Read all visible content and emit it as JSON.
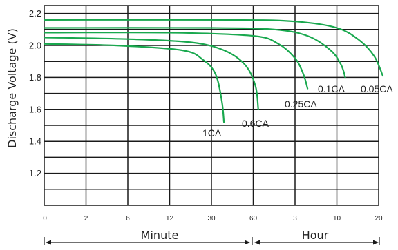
{
  "chart_data": {
    "type": "line",
    "ylabel": "Discharge Voltage (V)",
    "ylim": [
      1.0,
      2.25
    ],
    "y_ticks": [
      "1.2",
      "1.4",
      "1.6",
      "1.8",
      "2.0",
      "2.2"
    ],
    "x_tick_labels": [
      "0",
      "2",
      "6",
      "12",
      "30",
      "60",
      "3",
      "10",
      "20"
    ],
    "x_spans": [
      {
        "label": "Minute",
        "from": "0",
        "to": "60"
      },
      {
        "label": "Hour",
        "from": "60",
        "to": "20"
      }
    ],
    "grid": true,
    "series": [
      {
        "name": "1CA",
        "points": [
          [
            0,
            2.01
          ],
          [
            1.7,
            2.0
          ],
          [
            3.3,
            1.97
          ],
          [
            3.8,
            1.91
          ],
          [
            4.1,
            1.82
          ],
          [
            4.25,
            1.65
          ],
          [
            4.3,
            1.52
          ]
        ]
      },
      {
        "name": "0.6CA",
        "points": [
          [
            0,
            2.05
          ],
          [
            2.0,
            2.04
          ],
          [
            3.5,
            2.02
          ],
          [
            4.3,
            1.97
          ],
          [
            4.8,
            1.88
          ],
          [
            5.05,
            1.75
          ],
          [
            5.12,
            1.6
          ]
        ]
      },
      {
        "name": "0.25CA",
        "points": [
          [
            0,
            2.08
          ],
          [
            3.0,
            2.08
          ],
          [
            5.0,
            2.06
          ],
          [
            5.6,
            2.01
          ],
          [
            6.0,
            1.92
          ],
          [
            6.2,
            1.82
          ],
          [
            6.3,
            1.73
          ]
        ]
      },
      {
        "name": "0.1CA",
        "points": [
          [
            0,
            2.11
          ],
          [
            4.0,
            2.11
          ],
          [
            5.5,
            2.1
          ],
          [
            6.3,
            2.06
          ],
          [
            6.85,
            1.97
          ],
          [
            7.1,
            1.88
          ],
          [
            7.2,
            1.8
          ]
        ]
      },
      {
        "name": "0.05CA",
        "points": [
          [
            0,
            2.16
          ],
          [
            4.5,
            2.16
          ],
          [
            6.0,
            2.15
          ],
          [
            7.0,
            2.11
          ],
          [
            7.55,
            2.03
          ],
          [
            7.9,
            1.93
          ],
          [
            8.1,
            1.81
          ]
        ]
      }
    ],
    "series_labels": [
      "1CA",
      "0.6CA",
      "0.25CA",
      "0.1CA",
      "0.05CA"
    ]
  },
  "colors": {
    "curve": "#19a84e",
    "grid": "#1a1a1a"
  }
}
